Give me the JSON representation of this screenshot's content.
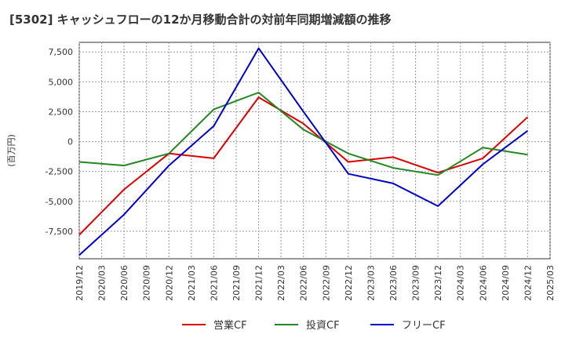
{
  "chart_data": {
    "type": "line",
    "title": "[5302]  キャッシュフローの12か月移動合計の対前年同期増減額の推移",
    "ylabel": "(百万円)",
    "xlabel": "",
    "x": [
      "2019/12",
      "2020/03",
      "2020/06",
      "2020/09",
      "2020/12",
      "2021/03",
      "2021/06",
      "2021/09",
      "2021/12",
      "2022/03",
      "2022/06",
      "2022/09",
      "2022/12",
      "2023/03",
      "2023/06",
      "2023/09",
      "2023/12",
      "2024/03",
      "2024/06",
      "2024/09",
      "2024/12",
      "2025/03"
    ],
    "yticks": [
      7500,
      5000,
      2500,
      0,
      -2500,
      -5000,
      -7500
    ],
    "ytick_labels": [
      "7,500",
      "5,000",
      "2,500",
      "0",
      "-2,500",
      "-5,000",
      "-7,500"
    ],
    "ylim": [
      -9800,
      8300
    ],
    "grid": true,
    "legend_position": "bottom",
    "series": [
      {
        "name": "営業CF",
        "color": "#dd0000",
        "values": [
          -7800,
          null,
          -4000,
          null,
          -1000,
          null,
          -1400,
          null,
          3700,
          null,
          1500,
          null,
          -1700,
          null,
          -1300,
          null,
          -2600,
          null,
          -1400,
          null,
          2050,
          null
        ]
      },
      {
        "name": "投資CF",
        "color": "#228822",
        "values": [
          -1700,
          null,
          -2000,
          null,
          -1000,
          null,
          2700,
          null,
          4100,
          null,
          1000,
          null,
          -1000,
          null,
          -2200,
          null,
          -2800,
          null,
          -500,
          null,
          -1100,
          null
        ]
      },
      {
        "name": "フリーCF",
        "color": "#0000cc",
        "values": [
          -9500,
          null,
          -6100,
          null,
          -2000,
          null,
          1300,
          null,
          7800,
          null,
          2500,
          null,
          -2700,
          null,
          -3500,
          null,
          -5400,
          null,
          -1900,
          null,
          900,
          null
        ]
      }
    ]
  }
}
